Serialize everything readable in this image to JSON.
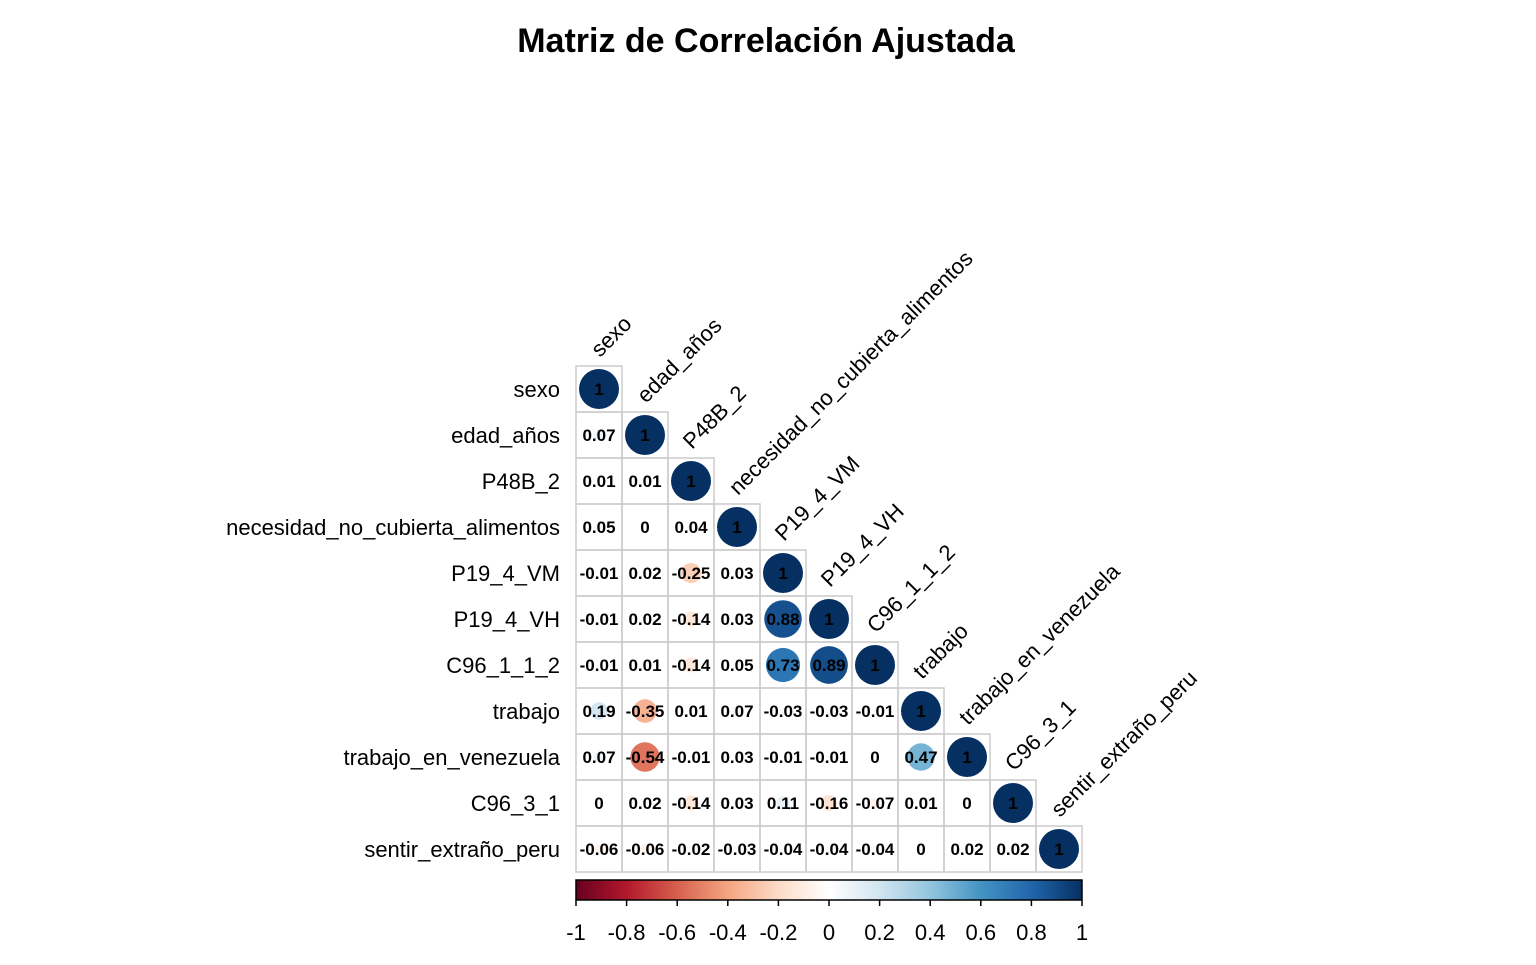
{
  "chart_data": {
    "type": "heatmap",
    "subtype": "correlation-matrix-lower-triangle",
    "title": "Matriz de Correlación Ajustada",
    "variables": [
      "sexo",
      "edad_años",
      "P48B_2",
      "necesidad_no_cubierta_alimentos",
      "P19_4_VM",
      "P19_4_VH",
      "C96_1_1_2",
      "trabajo",
      "trabajo_en_venezuela",
      "C96_3_1",
      "sentir_extraño_peru"
    ],
    "matrix": [
      [
        1
      ],
      [
        0.07,
        1
      ],
      [
        0.01,
        0.01,
        1
      ],
      [
        0.05,
        0,
        0.04,
        1
      ],
      [
        -0.01,
        0.02,
        -0.25,
        0.03,
        1
      ],
      [
        -0.01,
        0.02,
        -0.14,
        0.03,
        0.88,
        1
      ],
      [
        -0.01,
        0.01,
        -0.14,
        0.05,
        0.73,
        0.89,
        1
      ],
      [
        0.19,
        -0.35,
        0.01,
        0.07,
        -0.03,
        -0.03,
        -0.01,
        1
      ],
      [
        0.07,
        -0.54,
        -0.01,
        0.03,
        -0.01,
        -0.01,
        0,
        0.47,
        1
      ],
      [
        0,
        0.02,
        -0.14,
        0.03,
        0.11,
        -0.16,
        -0.07,
        0.01,
        0,
        1
      ],
      [
        -0.06,
        -0.06,
        -0.02,
        -0.03,
        -0.04,
        -0.04,
        -0.04,
        0,
        0.02,
        0.02,
        1
      ]
    ],
    "colorbar": {
      "ticks": [
        "-1",
        "-0.8",
        "-0.6",
        "-0.4",
        "-0.2",
        "0",
        "0.2",
        "0.4",
        "0.6",
        "0.8",
        "1"
      ],
      "range": [
        -1,
        1
      ]
    },
    "colors": {
      "negative_strong": "#67001f",
      "negative_mid": "#d6604d",
      "negative_light": "#fddbc7",
      "neutral": "#ffffff",
      "positive_light": "#d1e5f0",
      "positive_mid": "#4393c3",
      "positive_strong": "#053061",
      "grid": "#cccccc"
    },
    "legend_position": "bottom"
  }
}
